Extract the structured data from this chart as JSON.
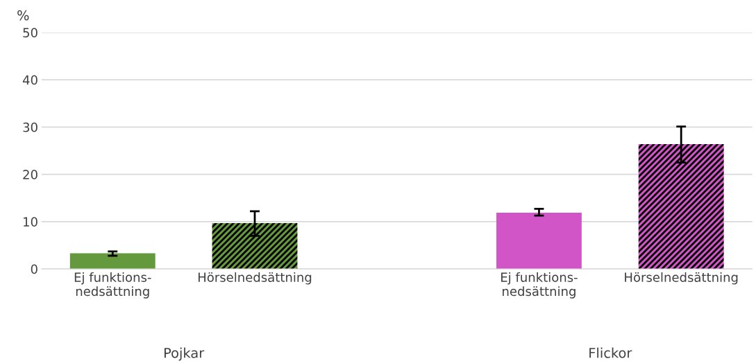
{
  "chart_data": {
    "type": "bar",
    "ylabel": "%",
    "categories": [
      "Ej funktions-\nnedsättning",
      "Hörselnedsättning",
      null,
      "Ej funktions-\nnedsättning",
      "Hörselnedsättning"
    ],
    "values": [
      3.3,
      9.7,
      null,
      11.9,
      26.4
    ],
    "colors": [
      "#64993d",
      "#64993d",
      "#ffffff",
      "#d155c6",
      "#d155c6"
    ],
    "errors": [
      [
        2.8,
        3.7
      ],
      [
        7.0,
        12.2
      ],
      null,
      [
        11.3,
        12.7
      ],
      [
        22.5,
        30.1
      ]
    ],
    "annotations": [
      "Pojkar",
      "Flickor"
    ],
    "ylim": [
      0,
      50
    ],
    "yticks": [
      0,
      10,
      20,
      30,
      40,
      50
    ],
    "grid": "y"
  }
}
